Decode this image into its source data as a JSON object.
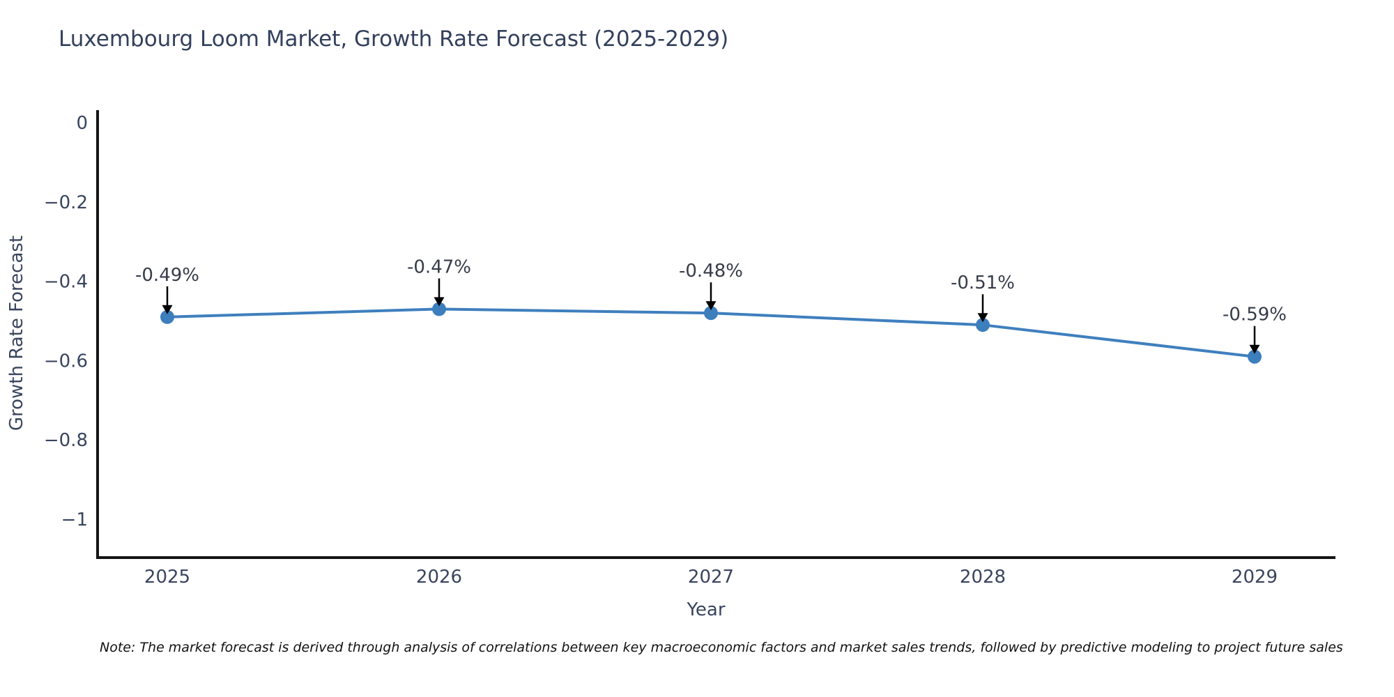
{
  "title": "Luxembourg Loom Market, Growth Rate Forecast (2025-2029)",
  "note": "Note: The market forecast is derived through analysis of correlations between key macroeconomic factors and market sales trends, followed by predictive modeling to project future sales",
  "chart_data": {
    "type": "line",
    "title": "Luxembourg Loom Market, Growth Rate Forecast (2025-2029)",
    "xlabel": "Year",
    "ylabel": "Growth Rate Forecast",
    "categories": [
      "2025",
      "2026",
      "2027",
      "2028",
      "2029"
    ],
    "series": [
      {
        "name": "Growth Rate Forecast",
        "values": [
          -0.49,
          -0.47,
          -0.48,
          -0.51,
          -0.59
        ]
      }
    ],
    "point_annotations": [
      "-0.49%",
      "-0.47%",
      "-0.48%",
      "-0.51%",
      "-0.59%"
    ],
    "yticks": {
      "values": [
        0,
        -0.2,
        -0.4,
        -0.6,
        -0.8,
        -1
      ],
      "labels": [
        "0",
        "−0.2",
        "−0.4",
        "−0.6",
        "−0.8",
        "−1"
      ]
    },
    "ylim": [
      0.03,
      -1.1
    ],
    "grid": false,
    "legend": "none",
    "colors": {
      "line": "#3f7fbe",
      "marker": "#3d7ebd",
      "spine": "#151515",
      "arrow": "#000000",
      "tick_text": "#39455e",
      "annotation_text": "#363c49",
      "title_text": "#33405c"
    }
  }
}
